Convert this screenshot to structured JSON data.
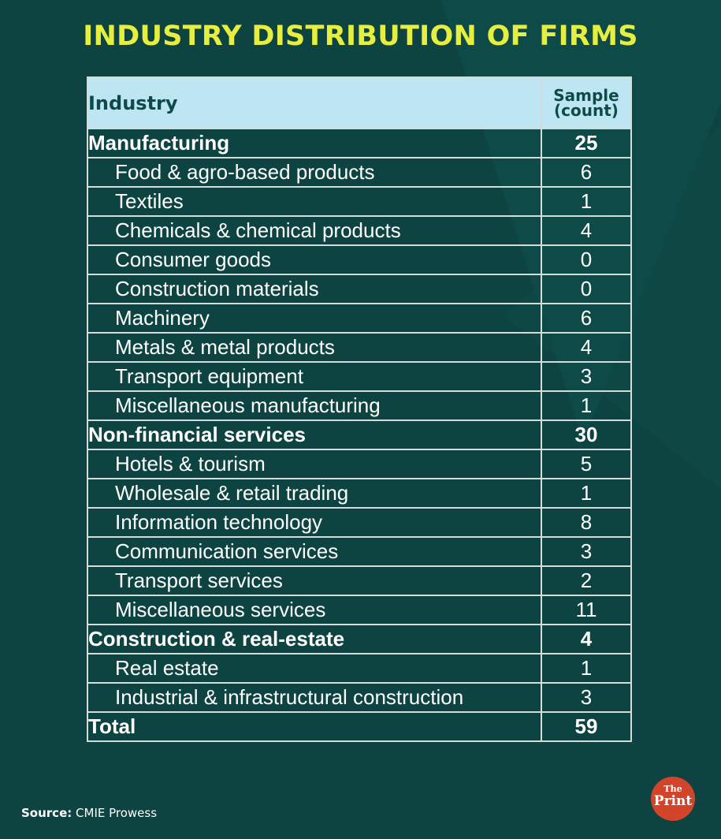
{
  "title": "INDUSTRY DISTRIBUTION OF FIRMS",
  "header": {
    "industry": "Industry",
    "count_line1": "Sample",
    "count_line2": "(count)"
  },
  "rows": [
    {
      "label": "Manufacturing",
      "value": "25",
      "group": true
    },
    {
      "label": "Food & agro-based products",
      "value": "6",
      "group": false
    },
    {
      "label": "Textiles",
      "value": "1",
      "group": false
    },
    {
      "label": "Chemicals & chemical products",
      "value": "4",
      "group": false
    },
    {
      "label": "Consumer goods",
      "value": "0",
      "group": false
    },
    {
      "label": "Construction materials",
      "value": "0",
      "group": false
    },
    {
      "label": "Machinery",
      "value": "6",
      "group": false
    },
    {
      "label": "Metals & metal products",
      "value": "4",
      "group": false
    },
    {
      "label": "Transport equipment",
      "value": "3",
      "group": false
    },
    {
      "label": "Miscellaneous manufacturing",
      "value": "1",
      "group": false
    },
    {
      "label": "Non-financial services",
      "value": "30",
      "group": true
    },
    {
      "label": "Hotels & tourism",
      "value": "5",
      "group": false
    },
    {
      "label": "Wholesale & retail trading",
      "value": "1",
      "group": false
    },
    {
      "label": "Information technology",
      "value": "8",
      "group": false
    },
    {
      "label": "Communication services",
      "value": "3",
      "group": false
    },
    {
      "label": "Transport services",
      "value": "2",
      "group": false
    },
    {
      "label": "Miscellaneous services",
      "value": "11",
      "group": false
    },
    {
      "label": "Construction & real-estate",
      "value": "4",
      "group": true
    },
    {
      "label": "Real estate",
      "value": "1",
      "group": false
    },
    {
      "label": "Industrial & infrastructural construction",
      "value": "3",
      "group": false
    },
    {
      "label": "Total",
      "value": "59",
      "group": true
    }
  ],
  "source": {
    "label": "Source:",
    "text": "CMIE Prowess"
  },
  "logo": {
    "line1": "The",
    "line2": "Print"
  },
  "chart_data": {
    "type": "table",
    "title": "INDUSTRY DISTRIBUTION OF FIRMS",
    "columns": [
      "Industry",
      "Sample (count)"
    ],
    "rows": [
      [
        "Manufacturing",
        25
      ],
      [
        "Food & agro-based products",
        6
      ],
      [
        "Textiles",
        1
      ],
      [
        "Chemicals & chemical products",
        4
      ],
      [
        "Consumer goods",
        0
      ],
      [
        "Construction materials",
        0
      ],
      [
        "Machinery",
        6
      ],
      [
        "Metals & metal products",
        4
      ],
      [
        "Transport equipment",
        3
      ],
      [
        "Miscellaneous manufacturing",
        1
      ],
      [
        "Non-financial services",
        30
      ],
      [
        "Hotels & tourism",
        5
      ],
      [
        "Wholesale & retail trading",
        1
      ],
      [
        "Information technology",
        8
      ],
      [
        "Communication services",
        3
      ],
      [
        "Transport services",
        2
      ],
      [
        "Miscellaneous services",
        11
      ],
      [
        "Construction & real-estate",
        4
      ],
      [
        "Real estate",
        1
      ],
      [
        "Industrial & infrastructural construction",
        3
      ],
      [
        "Total",
        59
      ]
    ]
  },
  "colors": {
    "background": "#0d4441",
    "title": "#e6ee3f",
    "header_bg": "#bde6f2",
    "header_text": "#0e4a47",
    "grid_line": "#d2dcdb",
    "logo": "#d2452b"
  }
}
